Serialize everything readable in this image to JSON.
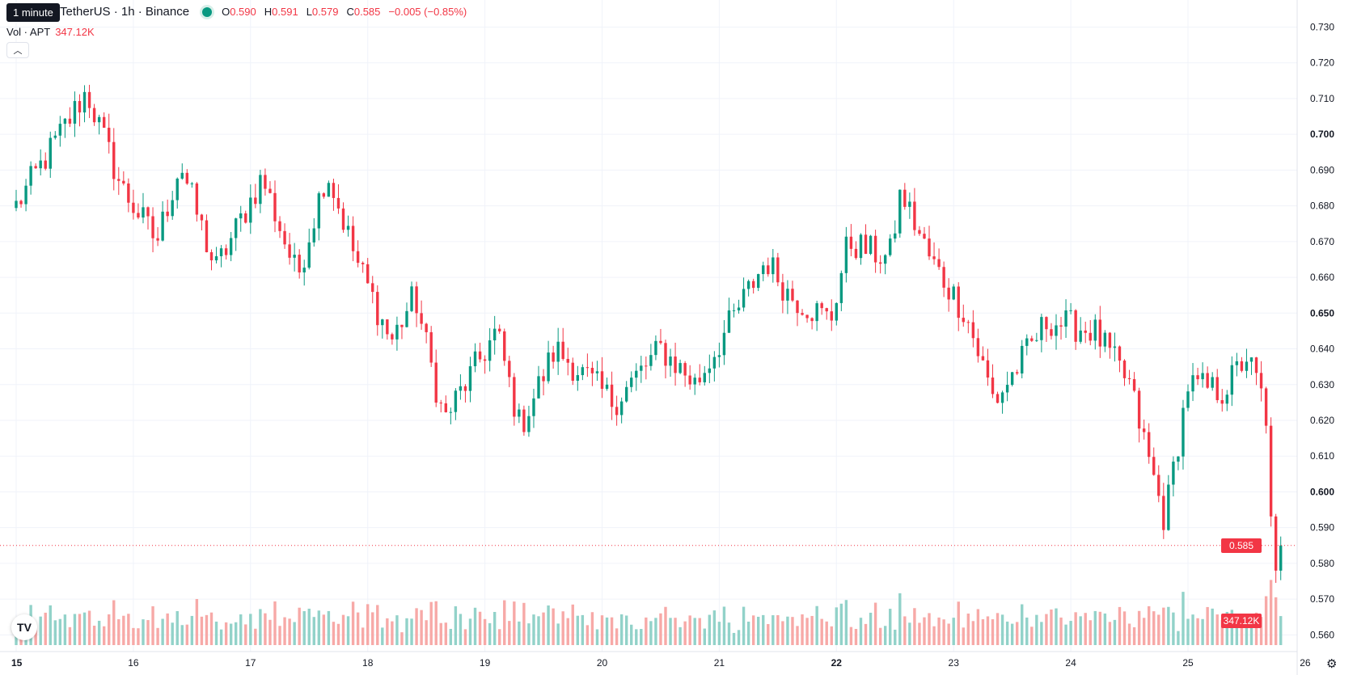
{
  "tooltip": "1 minute",
  "legend": {
    "symbol": "TetherUS · 1h · Binance",
    "o_label": "O",
    "o_value": "0.590",
    "h_label": "H",
    "h_value": "0.591",
    "l_label": "L",
    "l_value": "0.579",
    "c_label": "C",
    "c_value": "0.585",
    "change": "−0.005 (−0.85%)"
  },
  "volume_legend": {
    "label": "Vol · APT",
    "value": "347.12K"
  },
  "last_price_tag": "0.585",
  "last_volume_tag": "347.12K",
  "logo_text": "TV",
  "colors": {
    "up": "#089981",
    "down": "#f23645",
    "up_volume": "#92d2c9",
    "down_volume": "#f7a9a7",
    "grid": "#f0f3fa"
  },
  "chart_data": {
    "type": "candlestick",
    "interval": "1h",
    "y_axis_ticks": [
      "0.730",
      "0.720",
      "0.710",
      "0.700",
      "0.690",
      "0.680",
      "0.670",
      "0.660",
      "0.650",
      "0.640",
      "0.630",
      "0.620",
      "0.610",
      "0.600",
      "0.590",
      "0.580",
      "0.570",
      "0.560"
    ],
    "y_range": [
      0.5585,
      0.7335
    ],
    "x_axis_ticks": [
      "15",
      "16",
      "17",
      "18",
      "19",
      "20",
      "21",
      "22",
      "23",
      "24",
      "25",
      "26"
    ],
    "x_range_days": [
      15,
      26
    ],
    "last_close": 0.585,
    "key_points": [
      {
        "day": 15.0,
        "close": 0.68
      },
      {
        "day": 15.6,
        "close": 0.712
      },
      {
        "day": 15.9,
        "close": 0.685
      },
      {
        "day": 16.2,
        "close": 0.67
      },
      {
        "day": 16.4,
        "close": 0.692
      },
      {
        "day": 16.7,
        "close": 0.662
      },
      {
        "day": 17.1,
        "close": 0.688
      },
      {
        "day": 17.4,
        "close": 0.66
      },
      {
        "day": 17.65,
        "close": 0.69
      },
      {
        "day": 17.9,
        "close": 0.665
      },
      {
        "day": 18.2,
        "close": 0.642
      },
      {
        "day": 18.4,
        "close": 0.655
      },
      {
        "day": 18.65,
        "close": 0.62
      },
      {
        "day": 19.1,
        "close": 0.645
      },
      {
        "day": 19.3,
        "close": 0.618
      },
      {
        "day": 19.6,
        "close": 0.64
      },
      {
        "day": 20.1,
        "close": 0.625
      },
      {
        "day": 20.5,
        "close": 0.64
      },
      {
        "day": 20.8,
        "close": 0.63
      },
      {
        "day": 21.4,
        "close": 0.665
      },
      {
        "day": 21.6,
        "close": 0.655
      },
      {
        "day": 21.95,
        "close": 0.648
      },
      {
        "day": 22.1,
        "close": 0.67
      },
      {
        "day": 22.45,
        "close": 0.665
      },
      {
        "day": 22.55,
        "close": 0.684
      },
      {
        "day": 22.8,
        "close": 0.665
      },
      {
        "day": 23.1,
        "close": 0.65
      },
      {
        "day": 23.35,
        "close": 0.625
      },
      {
        "day": 23.8,
        "close": 0.648
      },
      {
        "day": 24.2,
        "close": 0.645
      },
      {
        "day": 24.5,
        "close": 0.63
      },
      {
        "day": 24.8,
        "close": 0.592
      },
      {
        "day": 25.0,
        "close": 0.63
      },
      {
        "day": 25.3,
        "close": 0.628
      },
      {
        "day": 25.5,
        "close": 0.638
      },
      {
        "day": 25.65,
        "close": 0.625
      },
      {
        "day": 25.75,
        "close": 0.575
      },
      {
        "day": 25.82,
        "close": 0.585
      }
    ]
  }
}
